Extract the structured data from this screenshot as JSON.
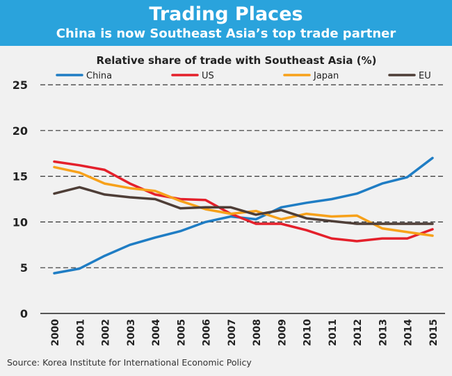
{
  "header": {
    "title": "Trading Places",
    "subtitle": "China is now Southeast Asia’s top trade partner"
  },
  "source": "Source: Korea Institute for International Economic Policy",
  "colors": {
    "header_bg": "#2aa3dc",
    "china": "#1f7dc4",
    "us": "#e4202b",
    "japan": "#f7a11a",
    "eu": "#4e3e37"
  },
  "chart_data": {
    "type": "line",
    "title": "Relative share of trade with Southeast Asia (%)",
    "x": [
      "2000",
      "2001",
      "2002",
      "2003",
      "2004",
      "2005",
      "2006",
      "2007",
      "2008",
      "2009",
      "2010",
      "2011",
      "2012",
      "2013",
      "2014",
      "2015"
    ],
    "ylim": [
      0,
      25
    ],
    "yticks": [
      "0",
      "5",
      "10",
      "15",
      "20",
      "25"
    ],
    "grid": "horizontal-dashed",
    "legend": "top",
    "series": [
      {
        "name": "China",
        "color": "#1f7dc4",
        "values": [
          4.4,
          4.9,
          6.3,
          7.5,
          8.3,
          9.0,
          10.0,
          10.6,
          10.3,
          11.6,
          12.1,
          12.5,
          13.1,
          14.2,
          14.9,
          17.0
        ]
      },
      {
        "name": "US",
        "color": "#e4202b",
        "values": [
          16.6,
          16.2,
          15.7,
          14.2,
          13.0,
          12.5,
          12.4,
          10.9,
          9.8,
          9.8,
          9.1,
          8.2,
          7.9,
          8.2,
          8.2,
          9.2
        ]
      },
      {
        "name": "Japan",
        "color": "#f7a11a",
        "values": [
          16.0,
          15.4,
          14.2,
          13.7,
          13.4,
          12.3,
          11.4,
          10.9,
          11.2,
          10.3,
          10.9,
          10.6,
          10.7,
          9.3,
          8.9,
          8.5
        ]
      },
      {
        "name": "EU",
        "color": "#4e3e37",
        "values": [
          13.1,
          13.8,
          13.0,
          12.7,
          12.5,
          11.5,
          11.6,
          11.6,
          10.8,
          11.3,
          10.4,
          10.1,
          9.8,
          9.8,
          9.8,
          9.8
        ]
      }
    ]
  }
}
